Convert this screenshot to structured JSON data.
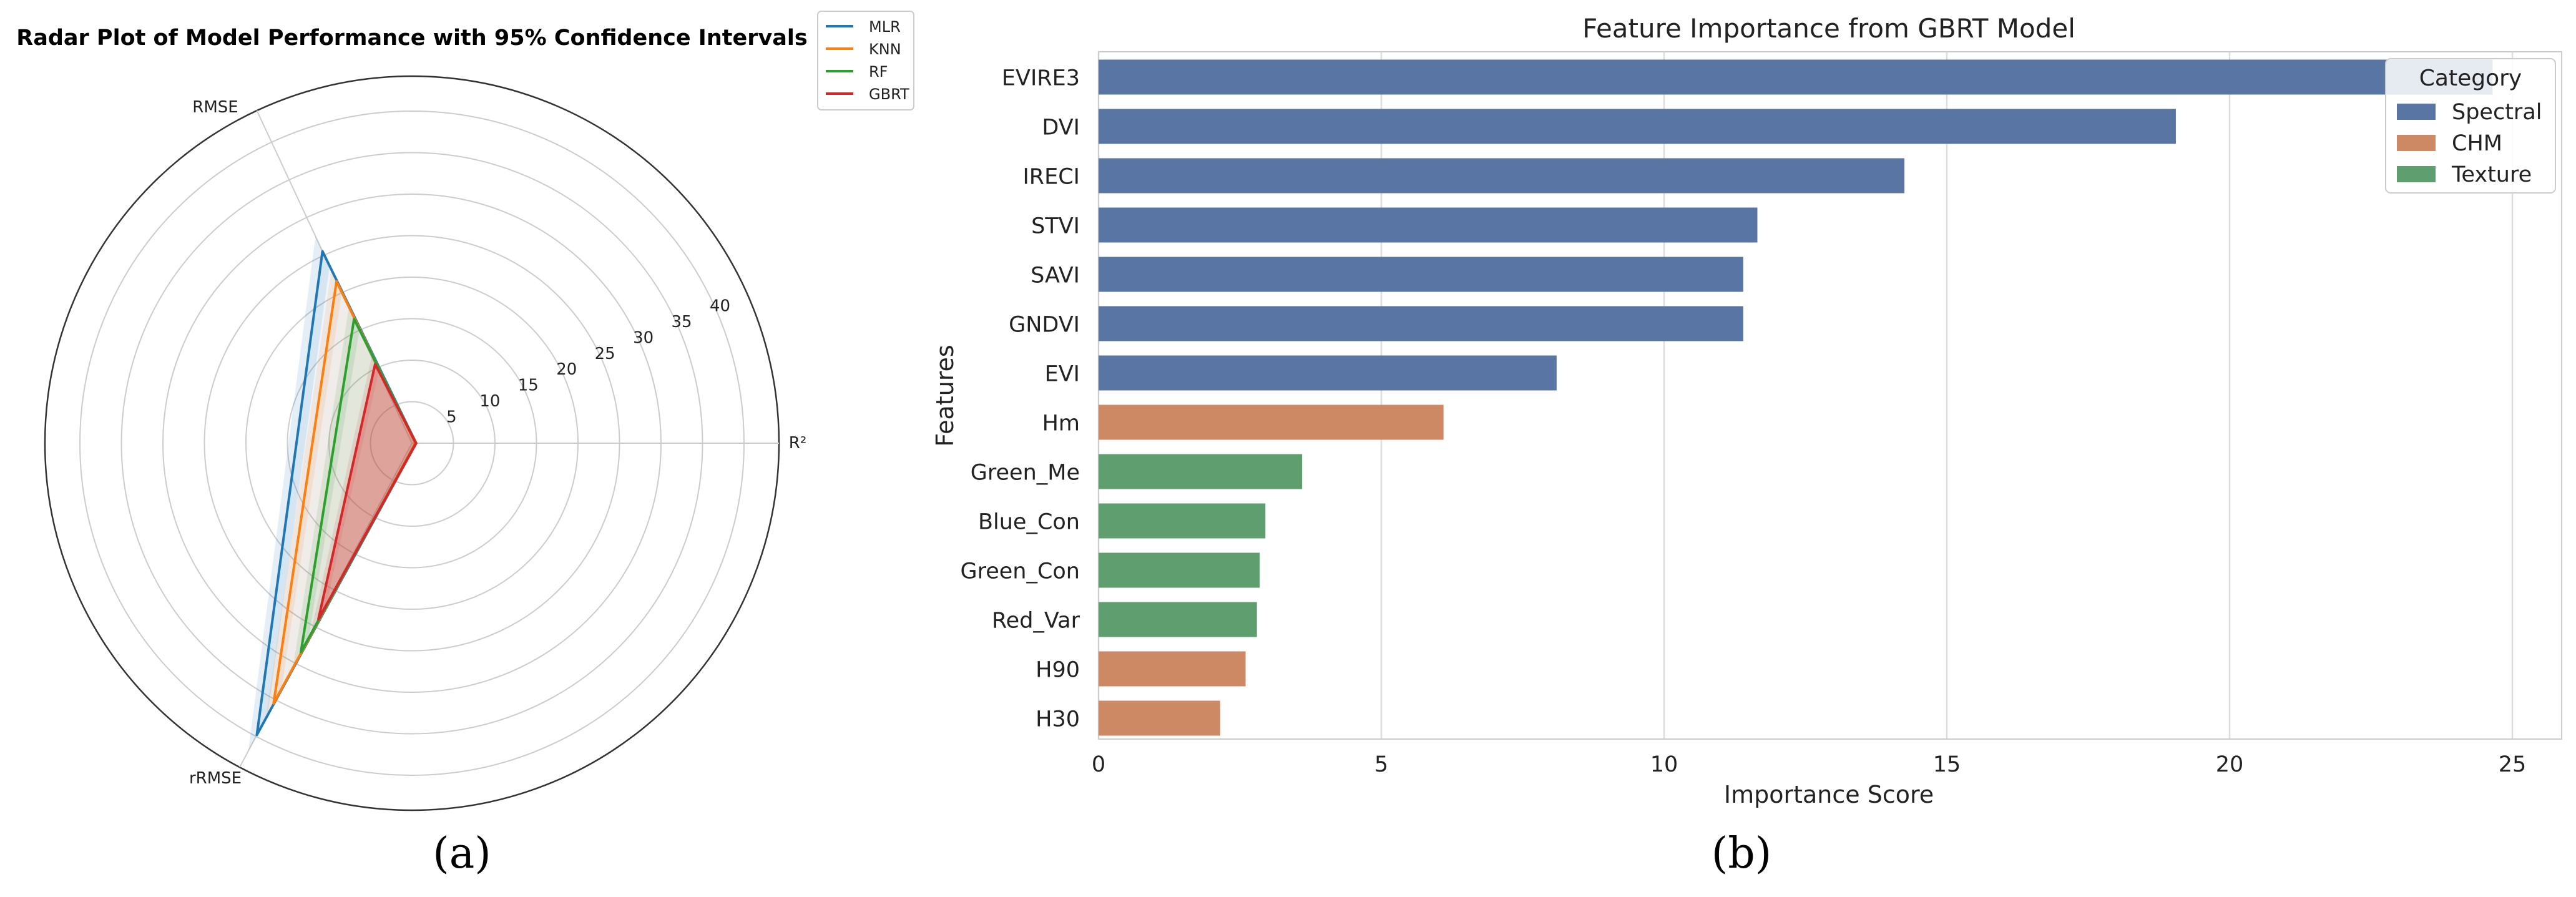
{
  "panels": {
    "a": "(a)",
    "b": "(b)"
  },
  "chart_data": [
    {
      "type": "radar",
      "title": "Radar Plot of Model Performance with 95% Confidence Intervals",
      "axes": [
        "R²",
        "RMSE",
        "rRMSE"
      ],
      "axis_directions": [
        "right",
        "upper-left",
        "lower-left"
      ],
      "radial_ticks": [
        5,
        10,
        15,
        20,
        25,
        30,
        35,
        40
      ],
      "radial_max": 45,
      "grid": true,
      "legend_position": "outside-top-right",
      "series": [
        {
          "name": "MLR",
          "color": "#1f77b4",
          "values": [
            0.5,
            25.5,
            39.8
          ],
          "ci": [
            [
              0.3,
              0.7
            ],
            [
              23.5,
              27.5
            ],
            [
              37.0,
              42.0
            ]
          ]
        },
        {
          "name": "KNN",
          "color": "#ff7f0e",
          "values": [
            0.4,
            21.5,
            35.5
          ],
          "ci": [
            [
              0.2,
              0.6
            ],
            [
              20.0,
              23.0
            ],
            [
              33.5,
              37.5
            ]
          ]
        },
        {
          "name": "RF",
          "color": "#2ca02c",
          "values": [
            0.5,
            16.5,
            28.5
          ],
          "ci": [
            [
              0.3,
              0.7
            ],
            [
              15.0,
              18.0
            ],
            [
              26.5,
              30.5
            ]
          ]
        },
        {
          "name": "GBRT",
          "color": "#d62728",
          "values": [
            0.5,
            10.5,
            24.0
          ],
          "ci": [
            [
              0.3,
              0.7
            ],
            [
              9.5,
              11.5
            ],
            [
              22.0,
              26.0
            ]
          ]
        }
      ]
    },
    {
      "type": "bar",
      "orientation": "horizontal",
      "title": "Feature Importance from GBRT Model",
      "xlabel": "Importance Score",
      "ylabel": "Features",
      "xlim": [
        0,
        26
      ],
      "xticks": [
        0,
        5,
        10,
        15,
        20,
        25
      ],
      "grid": true,
      "categories": [
        "EVIRE3",
        "DVI",
        "IRECI",
        "STVI",
        "SAVI",
        "GNDVI",
        "EVI",
        "Hm",
        "Green_Me",
        "Blue_Con",
        "Green_Con",
        "Red_Var",
        "H90",
        "H30"
      ],
      "values": [
        24.65,
        19.05,
        14.25,
        11.65,
        11.4,
        11.4,
        8.1,
        6.1,
        3.6,
        2.95,
        2.85,
        2.8,
        2.6,
        2.15
      ],
      "groups": [
        "Spectral",
        "Spectral",
        "Spectral",
        "Spectral",
        "Spectral",
        "Spectral",
        "Spectral",
        "CHM",
        "Texture",
        "Texture",
        "Texture",
        "Texture",
        "CHM",
        "CHM"
      ],
      "legend": {
        "title": "Category",
        "position": "top-right",
        "items": [
          {
            "name": "Spectral",
            "color": "#5975a4"
          },
          {
            "name": "CHM",
            "color": "#cc8963"
          },
          {
            "name": "Texture",
            "color": "#5f9e6e"
          }
        ]
      }
    }
  ]
}
